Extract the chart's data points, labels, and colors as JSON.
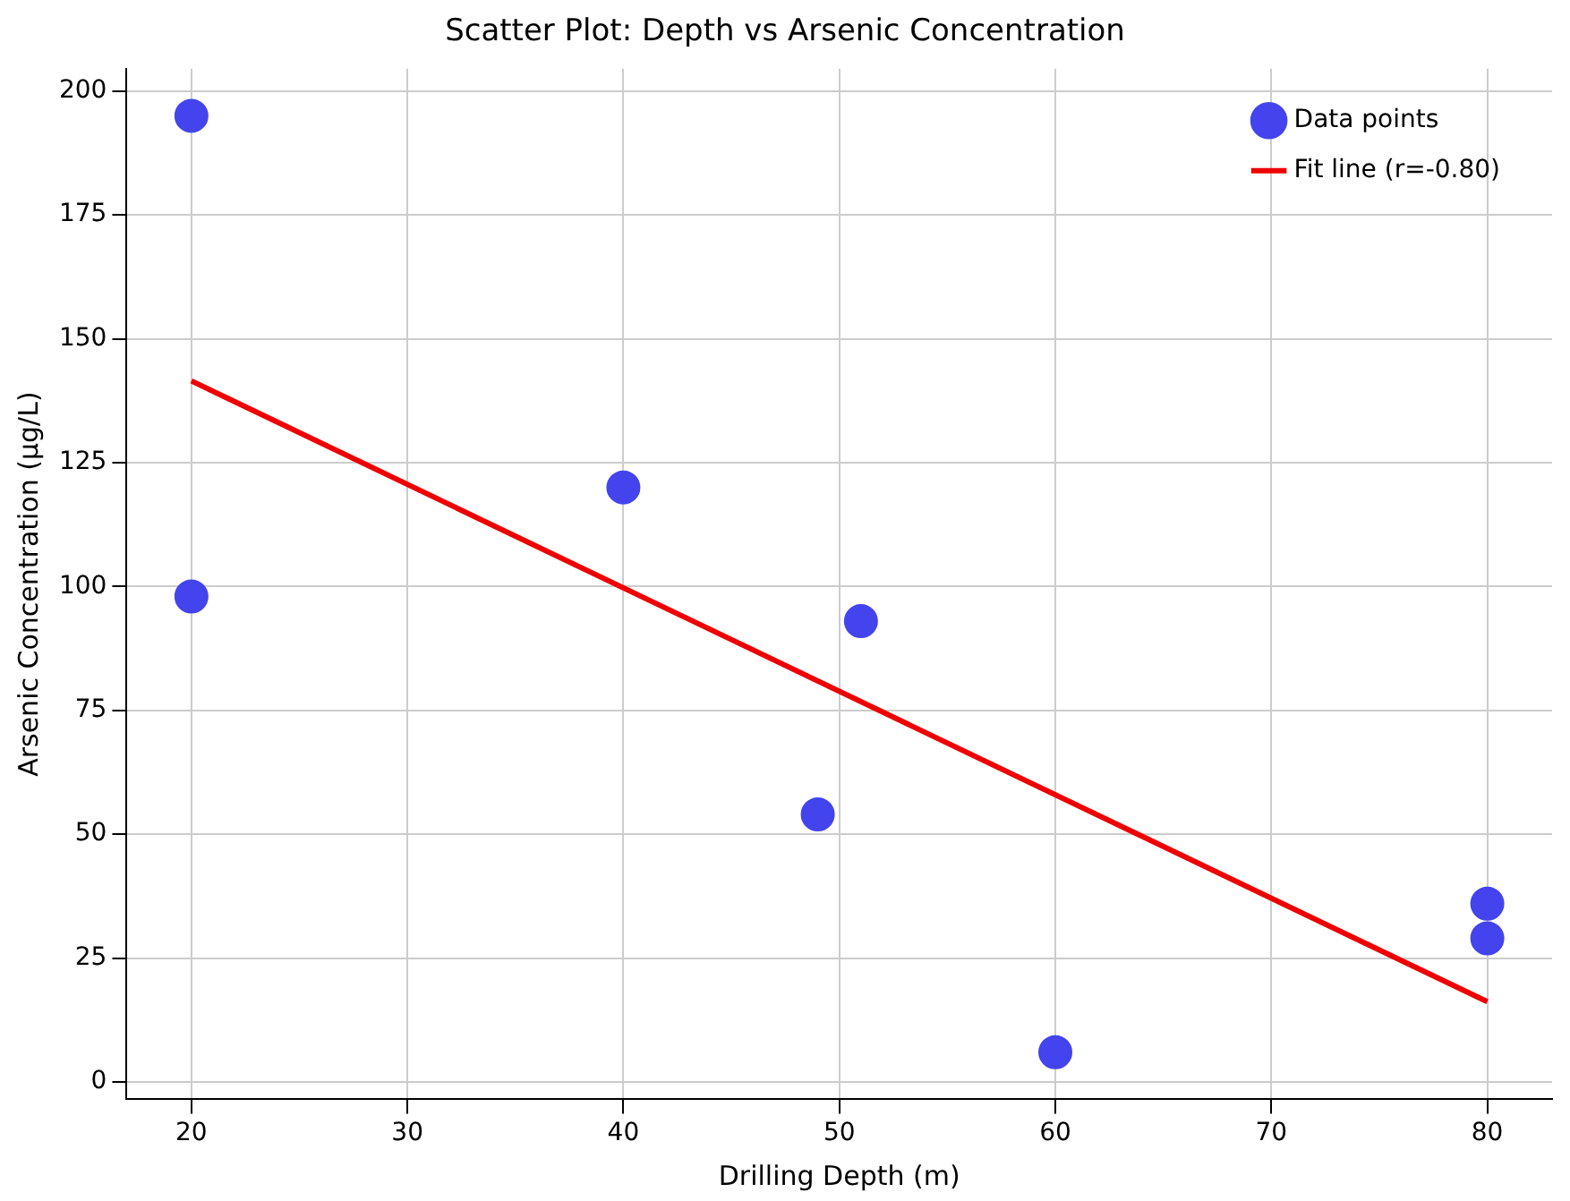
{
  "chart_data": {
    "type": "scatter",
    "title": "Scatter Plot: Depth vs Arsenic Concentration",
    "xlabel": "Drilling Depth (m)",
    "ylabel": "Arsenic Concentration (μg/L)",
    "x": [
      20,
      20,
      40,
      49,
      51,
      60,
      80,
      80
    ],
    "series": [
      {
        "name": "Data points",
        "color": "#4444ee",
        "type": "scatter",
        "marker": "circle",
        "values": [
          195,
          98,
          120,
          54,
          93,
          6,
          36,
          29
        ]
      },
      {
        "name": "Fit line (r=-0.80)",
        "color": "#ee0000",
        "type": "line",
        "x": [
          20,
          80
        ],
        "values": [
          141.5,
          16.2
        ]
      }
    ],
    "xlim": [
      17,
      83
    ],
    "ylim": [
      -3.5,
      204.5
    ],
    "xticks": [
      20,
      30,
      40,
      50,
      60,
      70,
      80
    ],
    "yticks": [
      0,
      25,
      50,
      75,
      100,
      125,
      150,
      175,
      200
    ],
    "grid": true,
    "legend": "top right"
  }
}
